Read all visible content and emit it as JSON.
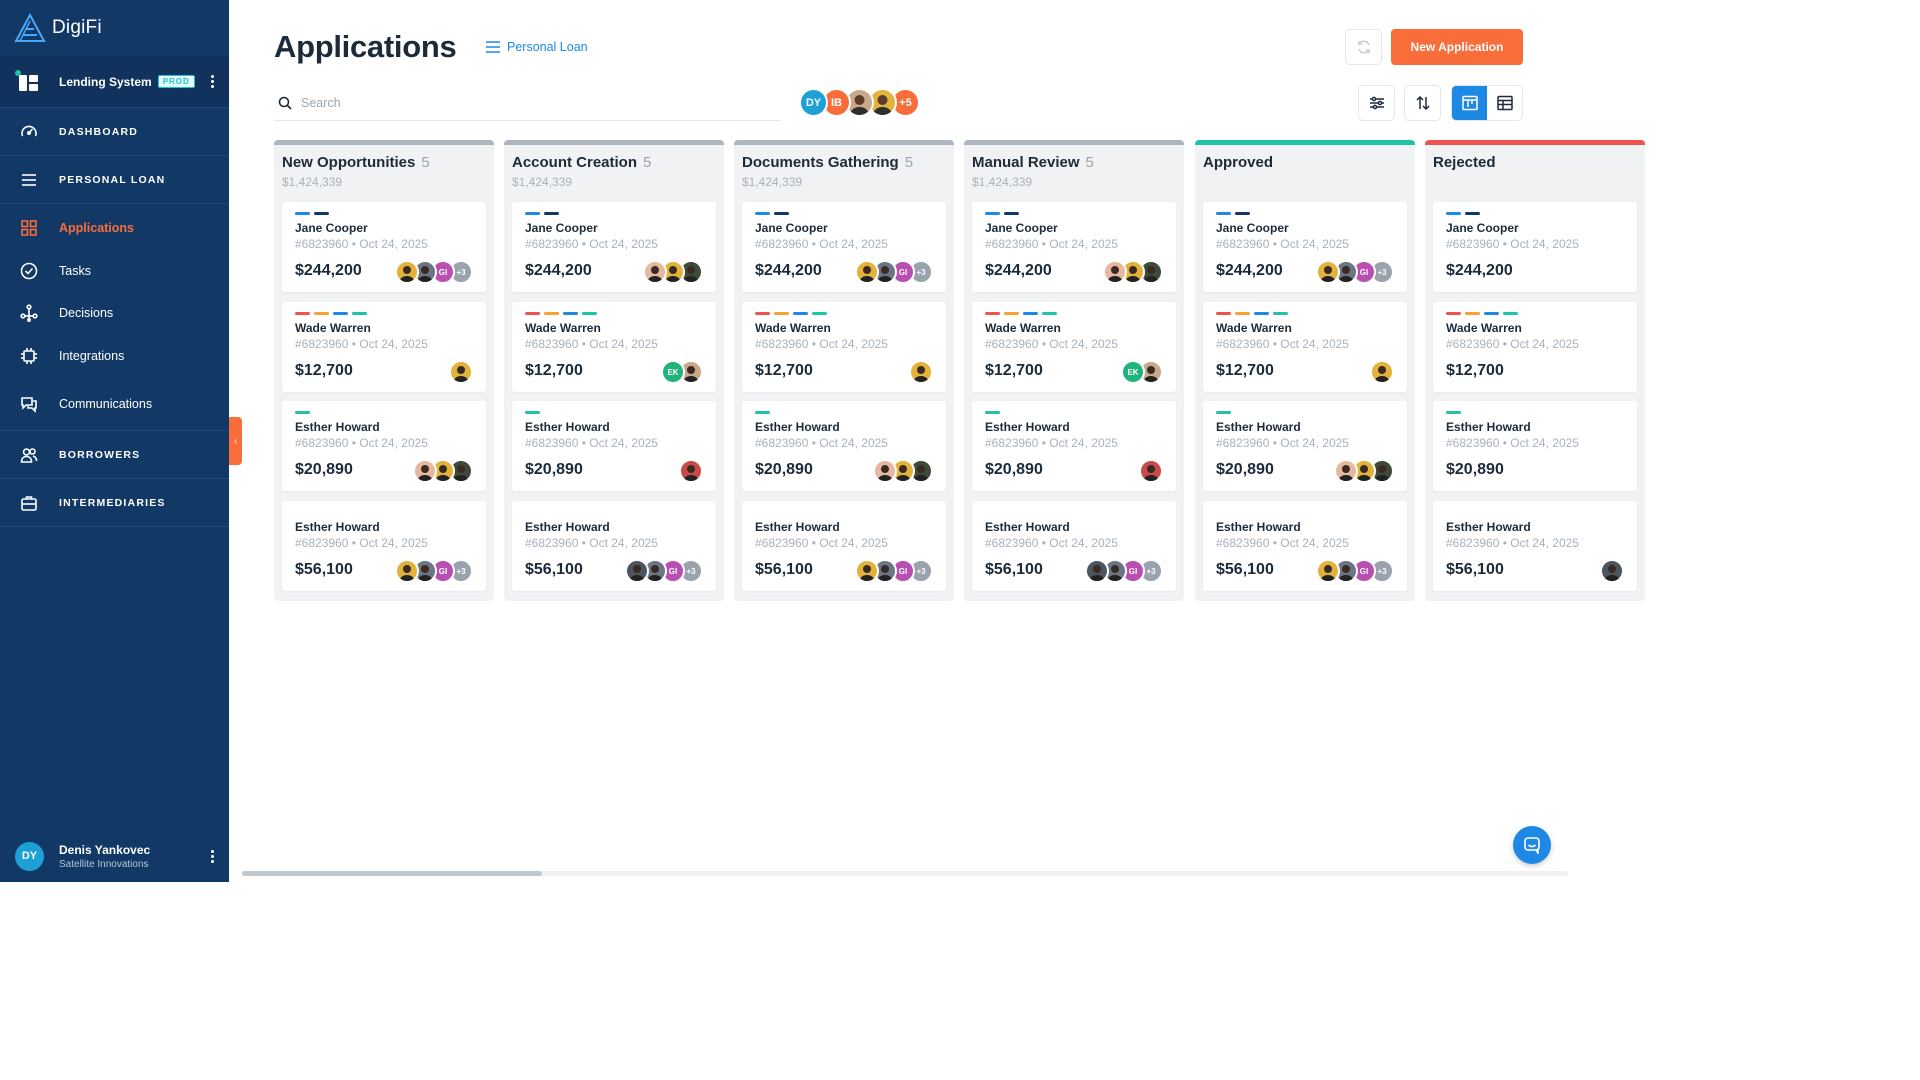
{
  "brand": {
    "name": "DigiFi"
  },
  "system": {
    "title": "Lending System",
    "badge": "PROD"
  },
  "nav": {
    "sections": [
      {
        "label": "DASHBOARD",
        "icon": "gauge-icon"
      },
      {
        "label": "PERSONAL LOAN",
        "icon": "menu-icon"
      }
    ],
    "sub_items": [
      {
        "label": "Applications",
        "icon": "grid-icon",
        "active": true
      },
      {
        "label": "Tasks",
        "icon": "check-circle-icon"
      },
      {
        "label": "Decisions",
        "icon": "flow-icon"
      },
      {
        "label": "Integrations",
        "icon": "chip-icon"
      },
      {
        "label": "Communications",
        "icon": "chat-icon"
      }
    ],
    "bottom_sections": [
      {
        "label": "BORROWERS",
        "icon": "users-icon"
      },
      {
        "label": "INTERMEDIARIES",
        "icon": "briefcase-icon"
      }
    ]
  },
  "profile": {
    "initials": "DY",
    "name": "Denis Yankovec",
    "org": "Satellite Innovations"
  },
  "header": {
    "title": "Applications",
    "product_link": "Personal Loan",
    "new_button": "New Application",
    "search_placeholder": "Search"
  },
  "team": [
    {
      "initials": "DY",
      "color": "#1da0d6"
    },
    {
      "initials": "IB",
      "color": "#f96d3a"
    },
    {
      "initials": "",
      "color": "#c9a98a",
      "photo": true
    },
    {
      "initials": "",
      "color": "#e2b23a",
      "photo": true
    },
    {
      "initials": "+5",
      "color": "#f96d3a"
    }
  ],
  "colors": {
    "accent": "#f96d3a",
    "sidebar": "#123866",
    "primary": "#1e88e5",
    "tag_blue": "#1e88e5",
    "tag_navy": "#123866",
    "tag_red": "#f0524d",
    "tag_orange": "#f7a232",
    "tag_teal": "#20c2a8"
  },
  "columns": [
    {
      "title": "New Opportunities",
      "count": "5",
      "total": "$1,424,339",
      "bar": "#b0b6bf"
    },
    {
      "title": "Account Creation",
      "count": "5",
      "total": "$1,424,339",
      "bar": "#b0b6bf"
    },
    {
      "title": "Documents Gathering",
      "count": "5",
      "total": "$1,424,339",
      "bar": "#b0b6bf"
    },
    {
      "title": "Manual Review",
      "count": "5",
      "total": "$1,424,339",
      "bar": "#b0b6bf"
    },
    {
      "title": "Approved",
      "count": "",
      "total": "",
      "bar": "#20c2a8"
    },
    {
      "title": "Rejected",
      "count": "",
      "total": "",
      "bar": "#f0524d"
    }
  ],
  "cards": [
    {
      "name": "Jane Cooper",
      "meta": "#6823960 • Oct 24, 2025",
      "amount": "$244,200",
      "tags": [
        "#1e88e5",
        "#123866"
      ]
    },
    {
      "name": "Wade Warren",
      "meta": "#6823960 • Oct 24, 2025",
      "amount": "$12,700",
      "tags": [
        "#f0524d",
        "#f7a232",
        "#1e88e5",
        "#20c2a8"
      ]
    },
    {
      "name": "Esther Howard",
      "meta": "#6823960 • Oct 24, 2025",
      "amount": "$20,890",
      "tags": [
        "#20c2a8"
      ]
    },
    {
      "name": "Esther Howard",
      "meta": "#6823960 • Oct 24, 2025",
      "amount": "$56,100",
      "tags": []
    }
  ],
  "card_avatars": [
    [
      [
        "#e2b23a",
        "#6b7585",
        "#b94fb0",
        "+3"
      ],
      [
        "#e6b8a0",
        "#e2b23a",
        "#3d4a3a"
      ],
      [
        "#e2b23a",
        "#6b7585",
        "#b94fb0",
        "+3"
      ],
      [
        "#e6b8a0",
        "#e2b23a",
        "#3d4a3a"
      ],
      [
        "#e2b23a",
        "#6b7585",
        "#b94fb0",
        "+3"
      ],
      []
    ],
    [
      [
        "#e2b23a"
      ],
      [
        "#20b37a",
        "#c9a98a"
      ],
      [
        "#e2b23a"
      ],
      [
        "#20b37a",
        "#c9a98a"
      ],
      [
        "#e2b23a"
      ],
      []
    ],
    [
      [
        "#e6b8a0",
        "#e2b23a",
        "#3d4a3a"
      ],
      [
        "#c94a4a"
      ],
      [
        "#e6b8a0",
        "#e2b23a",
        "#3d4a3a"
      ],
      [
        "#c94a4a"
      ],
      [
        "#e6b8a0",
        "#e2b23a",
        "#3d4a3a"
      ],
      []
    ],
    [
      [
        "#e2b23a",
        "#6b7585",
        "#b94fb0",
        "+3"
      ],
      [
        "#4a5560",
        "#6b7585",
        "#b94fb0",
        "+3"
      ],
      [
        "#e2b23a",
        "#6b7585",
        "#b94fb0",
        "+3"
      ],
      [
        "#4a5560",
        "#6b7585",
        "#b94fb0",
        "+3"
      ],
      [
        "#e2b23a",
        "#6b7585",
        "#b94fb0",
        "+3"
      ],
      [
        "#4a5560"
      ]
    ]
  ],
  "avatar_initials": {
    "#e2b23a": "",
    "#b94fb0": "GI",
    "#20b37a": "EK"
  }
}
